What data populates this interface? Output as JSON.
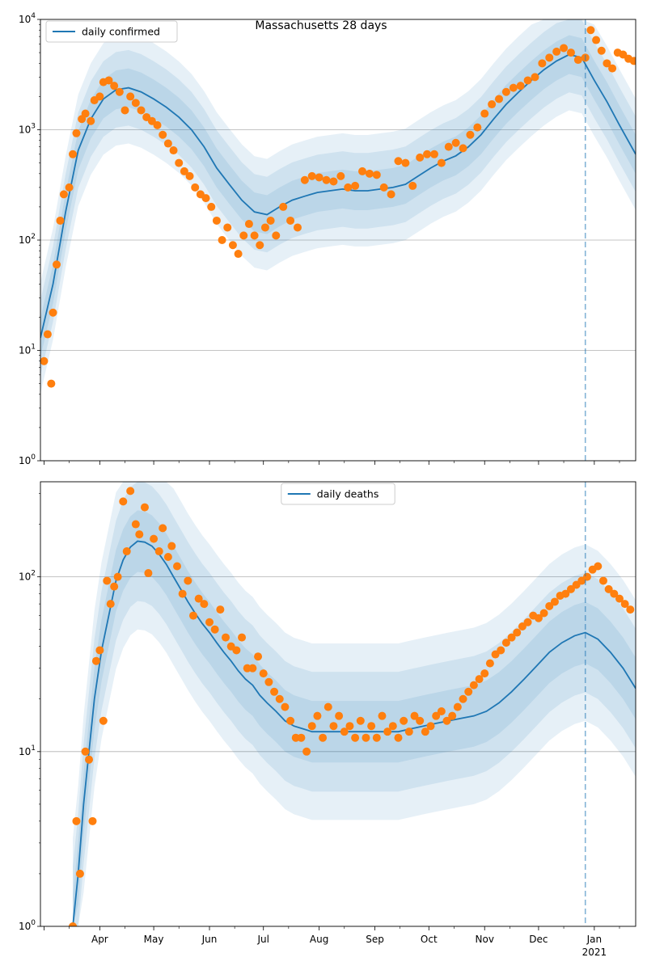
{
  "title": "Massachusetts 28 days",
  "colors": {
    "model": "#1f77b4",
    "observed": "#ff7f0e",
    "band": "#1f77b4",
    "grid": "#b0b0b0"
  },
  "chart_data": [
    {
      "type": "line",
      "yscale": "log",
      "ylim": [
        1,
        10000
      ],
      "xlim": [
        "2020-02-28",
        "2021-01-24"
      ],
      "ytick_values": [
        1,
        10,
        100,
        1000,
        10000
      ],
      "ytick_labels": [
        "10^0",
        "10^1",
        "10^2",
        "10^3",
        "10^4"
      ],
      "grid": "y",
      "legend": {
        "position": "top-left",
        "entries": [
          "daily confirmed"
        ]
      },
      "vline_date": "2020-12-27",
      "series": [
        {
          "name": "daily confirmed",
          "kind": "line",
          "x": [
            "2020-02-28",
            "2020-03-06",
            "2020-03-13",
            "2020-03-20",
            "2020-03-27",
            "2020-04-03",
            "2020-04-10",
            "2020-04-17",
            "2020-04-24",
            "2020-05-01",
            "2020-05-08",
            "2020-05-15",
            "2020-05-22",
            "2020-05-29",
            "2020-06-05",
            "2020-06-12",
            "2020-06-19",
            "2020-06-26",
            "2020-07-03",
            "2020-07-10",
            "2020-07-17",
            "2020-07-24",
            "2020-07-31",
            "2020-08-07",
            "2020-08-14",
            "2020-08-21",
            "2020-08-28",
            "2020-09-04",
            "2020-09-11",
            "2020-09-18",
            "2020-09-25",
            "2020-10-02",
            "2020-10-09",
            "2020-10-16",
            "2020-10-23",
            "2020-10-30",
            "2020-11-06",
            "2020-11-13",
            "2020-11-20",
            "2020-11-27",
            "2020-12-04",
            "2020-12-11",
            "2020-12-18",
            "2020-12-25",
            "2021-01-01",
            "2021-01-08",
            "2021-01-15",
            "2021-01-24"
          ],
          "y": [
            13,
            40,
            180,
            650,
            1250,
            1900,
            2300,
            2400,
            2200,
            1900,
            1600,
            1300,
            1000,
            700,
            450,
            320,
            230,
            180,
            170,
            200,
            230,
            250,
            270,
            280,
            290,
            280,
            280,
            290,
            300,
            320,
            380,
            450,
            520,
            580,
            700,
            900,
            1250,
            1700,
            2200,
            2800,
            3500,
            4200,
            4800,
            4500,
            2800,
            1800,
            1100,
            600
          ]
        },
        {
          "name": "",
          "kind": "scatter",
          "x": [
            "2020-03-01",
            "2020-03-03",
            "2020-03-05",
            "2020-03-06",
            "2020-03-08",
            "2020-03-10",
            "2020-03-12",
            "2020-03-15",
            "2020-03-17",
            "2020-03-19",
            "2020-03-22",
            "2020-03-24",
            "2020-03-27",
            "2020-03-29",
            "2020-04-01",
            "2020-04-03",
            "2020-04-06",
            "2020-04-09",
            "2020-04-12",
            "2020-04-15",
            "2020-04-18",
            "2020-04-21",
            "2020-04-24",
            "2020-04-27",
            "2020-04-30",
            "2020-05-03",
            "2020-05-06",
            "2020-05-09",
            "2020-05-12",
            "2020-05-15",
            "2020-05-18",
            "2020-05-21",
            "2020-05-24",
            "2020-05-27",
            "2020-05-30",
            "2020-06-02",
            "2020-06-05",
            "2020-06-08",
            "2020-06-11",
            "2020-06-14",
            "2020-06-17",
            "2020-06-20",
            "2020-06-23",
            "2020-06-26",
            "2020-06-29",
            "2020-07-02",
            "2020-07-05",
            "2020-07-08",
            "2020-07-12",
            "2020-07-16",
            "2020-07-20",
            "2020-07-24",
            "2020-07-28",
            "2020-08-01",
            "2020-08-05",
            "2020-08-09",
            "2020-08-13",
            "2020-08-17",
            "2020-08-21",
            "2020-08-25",
            "2020-08-29",
            "2020-09-02",
            "2020-09-06",
            "2020-09-10",
            "2020-09-14",
            "2020-09-18",
            "2020-09-22",
            "2020-09-26",
            "2020-09-30",
            "2020-10-04",
            "2020-10-08",
            "2020-10-12",
            "2020-10-16",
            "2020-10-20",
            "2020-10-24",
            "2020-10-28",
            "2020-11-01",
            "2020-11-05",
            "2020-11-09",
            "2020-11-13",
            "2020-11-17",
            "2020-11-21",
            "2020-11-25",
            "2020-11-29",
            "2020-12-03",
            "2020-12-07",
            "2020-12-11",
            "2020-12-15",
            "2020-12-19",
            "2020-12-23",
            "2020-12-27",
            "2020-12-30",
            "2021-01-02",
            "2021-01-05",
            "2021-01-08",
            "2021-01-11",
            "2021-01-14",
            "2021-01-17",
            "2021-01-20",
            "2021-01-23"
          ],
          "y": [
            8,
            14,
            5,
            22,
            60,
            150,
            260,
            300,
            600,
            930,
            1250,
            1400,
            1200,
            1850,
            2000,
            2700,
            2800,
            2500,
            2200,
            1500,
            2000,
            1750,
            1500,
            1300,
            1200,
            1100,
            900,
            750,
            650,
            500,
            420,
            380,
            300,
            260,
            240,
            200,
            150,
            100,
            130,
            90,
            75,
            110,
            140,
            110,
            90,
            130,
            150,
            110,
            200,
            150,
            130,
            350,
            380,
            370,
            350,
            340,
            380,
            300,
            310,
            420,
            400,
            390,
            300,
            260,
            520,
            500,
            310,
            560,
            600,
            600,
            500,
            700,
            760,
            680,
            900,
            1050,
            1400,
            1700,
            1900,
            2200,
            2400,
            2500,
            2800,
            3000,
            4000,
            4500,
            5100,
            5500,
            5000,
            4300,
            4500,
            8000,
            6500,
            5200,
            4000,
            3600,
            5000,
            4800,
            4400,
            4200
          ]
        }
      ]
    },
    {
      "type": "line",
      "yscale": "log",
      "ylim": [
        1,
        350
      ],
      "xlim": [
        "2020-02-28",
        "2021-01-24"
      ],
      "ytick_values": [
        1,
        10,
        100
      ],
      "ytick_labels": [
        "10^0",
        "10^1",
        "10^2"
      ],
      "xtick_labels": [
        "Apr",
        "May",
        "Jun",
        "Jul",
        "Aug",
        "Sep",
        "Oct",
        "Nov",
        "Dec",
        "Jan"
      ],
      "xtick_year_label": "2021",
      "grid": "y",
      "legend": {
        "position": "top-center",
        "entries": [
          "daily deaths"
        ]
      },
      "vline_date": "2020-12-27",
      "series": [
        {
          "name": "daily deaths",
          "kind": "line",
          "x": [
            "2020-03-17",
            "2020-03-20",
            "2020-03-23",
            "2020-03-26",
            "2020-03-29",
            "2020-04-02",
            "2020-04-06",
            "2020-04-10",
            "2020-04-14",
            "2020-04-18",
            "2020-04-22",
            "2020-04-26",
            "2020-04-30",
            "2020-05-04",
            "2020-05-08",
            "2020-05-12",
            "2020-05-16",
            "2020-05-20",
            "2020-05-24",
            "2020-05-28",
            "2020-06-01",
            "2020-06-05",
            "2020-06-09",
            "2020-06-13",
            "2020-06-17",
            "2020-06-21",
            "2020-06-25",
            "2020-06-29",
            "2020-07-03",
            "2020-07-08",
            "2020-07-13",
            "2020-07-18",
            "2020-07-23",
            "2020-07-28",
            "2020-08-03",
            "2020-08-10",
            "2020-08-17",
            "2020-08-24",
            "2020-08-31",
            "2020-09-07",
            "2020-09-14",
            "2020-09-21",
            "2020-09-28",
            "2020-10-05",
            "2020-10-12",
            "2020-10-19",
            "2020-10-26",
            "2020-11-02",
            "2020-11-09",
            "2020-11-16",
            "2020-11-23",
            "2020-11-30",
            "2020-12-07",
            "2020-12-14",
            "2020-12-21",
            "2020-12-27",
            "2021-01-03",
            "2021-01-10",
            "2021-01-17",
            "2021-01-24"
          ],
          "y": [
            1,
            2,
            5,
            10,
            20,
            38,
            60,
            95,
            125,
            148,
            160,
            158,
            150,
            135,
            118,
            100,
            85,
            72,
            62,
            54,
            48,
            42,
            37,
            33,
            29,
            26,
            24,
            21,
            19,
            17,
            15,
            14,
            13.5,
            13,
            13,
            13,
            13,
            13,
            13,
            13,
            13,
            13.5,
            14,
            14.5,
            15,
            15.5,
            16,
            17,
            19,
            22,
            26,
            31,
            37,
            42,
            46,
            48,
            44,
            37,
            30,
            23
          ]
        },
        {
          "name": "",
          "kind": "scatter",
          "x": [
            "2020-03-17",
            "2020-03-19",
            "2020-03-21",
            "2020-03-24",
            "2020-03-26",
            "2020-03-28",
            "2020-03-30",
            "2020-04-01",
            "2020-04-03",
            "2020-04-05",
            "2020-04-07",
            "2020-04-09",
            "2020-04-11",
            "2020-04-14",
            "2020-04-16",
            "2020-04-18",
            "2020-04-21",
            "2020-04-23",
            "2020-04-26",
            "2020-04-28",
            "2020-05-01",
            "2020-05-04",
            "2020-05-06",
            "2020-05-09",
            "2020-05-11",
            "2020-05-14",
            "2020-05-17",
            "2020-05-20",
            "2020-05-23",
            "2020-05-26",
            "2020-05-29",
            "2020-06-01",
            "2020-06-04",
            "2020-06-07",
            "2020-06-10",
            "2020-06-13",
            "2020-06-16",
            "2020-06-19",
            "2020-06-22",
            "2020-06-25",
            "2020-06-28",
            "2020-07-01",
            "2020-07-04",
            "2020-07-07",
            "2020-07-10",
            "2020-07-13",
            "2020-07-16",
            "2020-07-19",
            "2020-07-22",
            "2020-07-25",
            "2020-07-28",
            "2020-07-31",
            "2020-08-03",
            "2020-08-06",
            "2020-08-09",
            "2020-08-12",
            "2020-08-15",
            "2020-08-18",
            "2020-08-21",
            "2020-08-24",
            "2020-08-27",
            "2020-08-30",
            "2020-09-02",
            "2020-09-05",
            "2020-09-08",
            "2020-09-11",
            "2020-09-14",
            "2020-09-17",
            "2020-09-20",
            "2020-09-23",
            "2020-09-26",
            "2020-09-29",
            "2020-10-02",
            "2020-10-05",
            "2020-10-08",
            "2020-10-11",
            "2020-10-14",
            "2020-10-17",
            "2020-10-20",
            "2020-10-23",
            "2020-10-26",
            "2020-10-29",
            "2020-11-01",
            "2020-11-04",
            "2020-11-07",
            "2020-11-10",
            "2020-11-13",
            "2020-11-16",
            "2020-11-19",
            "2020-11-22",
            "2020-11-25",
            "2020-11-28",
            "2020-12-01",
            "2020-12-04",
            "2020-12-07",
            "2020-12-10",
            "2020-12-13",
            "2020-12-16",
            "2020-12-19",
            "2020-12-22",
            "2020-12-25",
            "2020-12-28",
            "2020-12-31",
            "2021-01-03",
            "2021-01-06",
            "2021-01-09",
            "2021-01-12",
            "2021-01-15",
            "2021-01-18",
            "2021-01-21"
          ],
          "y": [
            1,
            4,
            2,
            10,
            9,
            4,
            33,
            38,
            15,
            95,
            70,
            88,
            100,
            270,
            140,
            310,
            200,
            175,
            250,
            105,
            165,
            140,
            190,
            130,
            150,
            115,
            80,
            95,
            60,
            75,
            70,
            55,
            50,
            65,
            45,
            40,
            38,
            45,
            30,
            30,
            35,
            28,
            25,
            22,
            20,
            18,
            15,
            12,
            12,
            10,
            14,
            16,
            12,
            18,
            14,
            16,
            13,
            14,
            12,
            15,
            12,
            14,
            12,
            16,
            13,
            14,
            12,
            15,
            13,
            16,
            15,
            13,
            14,
            16,
            17,
            15,
            16,
            18,
            20,
            22,
            24,
            26,
            28,
            32,
            36,
            38,
            42,
            45,
            48,
            52,
            55,
            60,
            58,
            62,
            68,
            72,
            78,
            80,
            85,
            90,
            95,
            100,
            110,
            115,
            95,
            85,
            80,
            75,
            70,
            65
          ]
        }
      ]
    }
  ]
}
